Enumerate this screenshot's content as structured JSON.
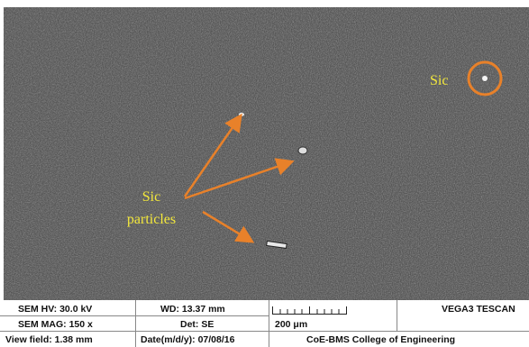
{
  "annotations": {
    "sic": "Sic",
    "particles": [
      "Sic",
      "particles"
    ]
  },
  "info_bar": {
    "rows": [
      [
        "SEM HV: 30.0 kV",
        "WD: 13.37 mm",
        "VEGA3 TESCAN"
      ],
      [
        "SEM MAG: 150 x",
        "Det: SE",
        "200 μm"
      ],
      [
        "View field: 1.38 mm",
        "Date(m/d/y): 07/08/16",
        "CoE-BMS College of Engineering"
      ]
    ]
  }
}
